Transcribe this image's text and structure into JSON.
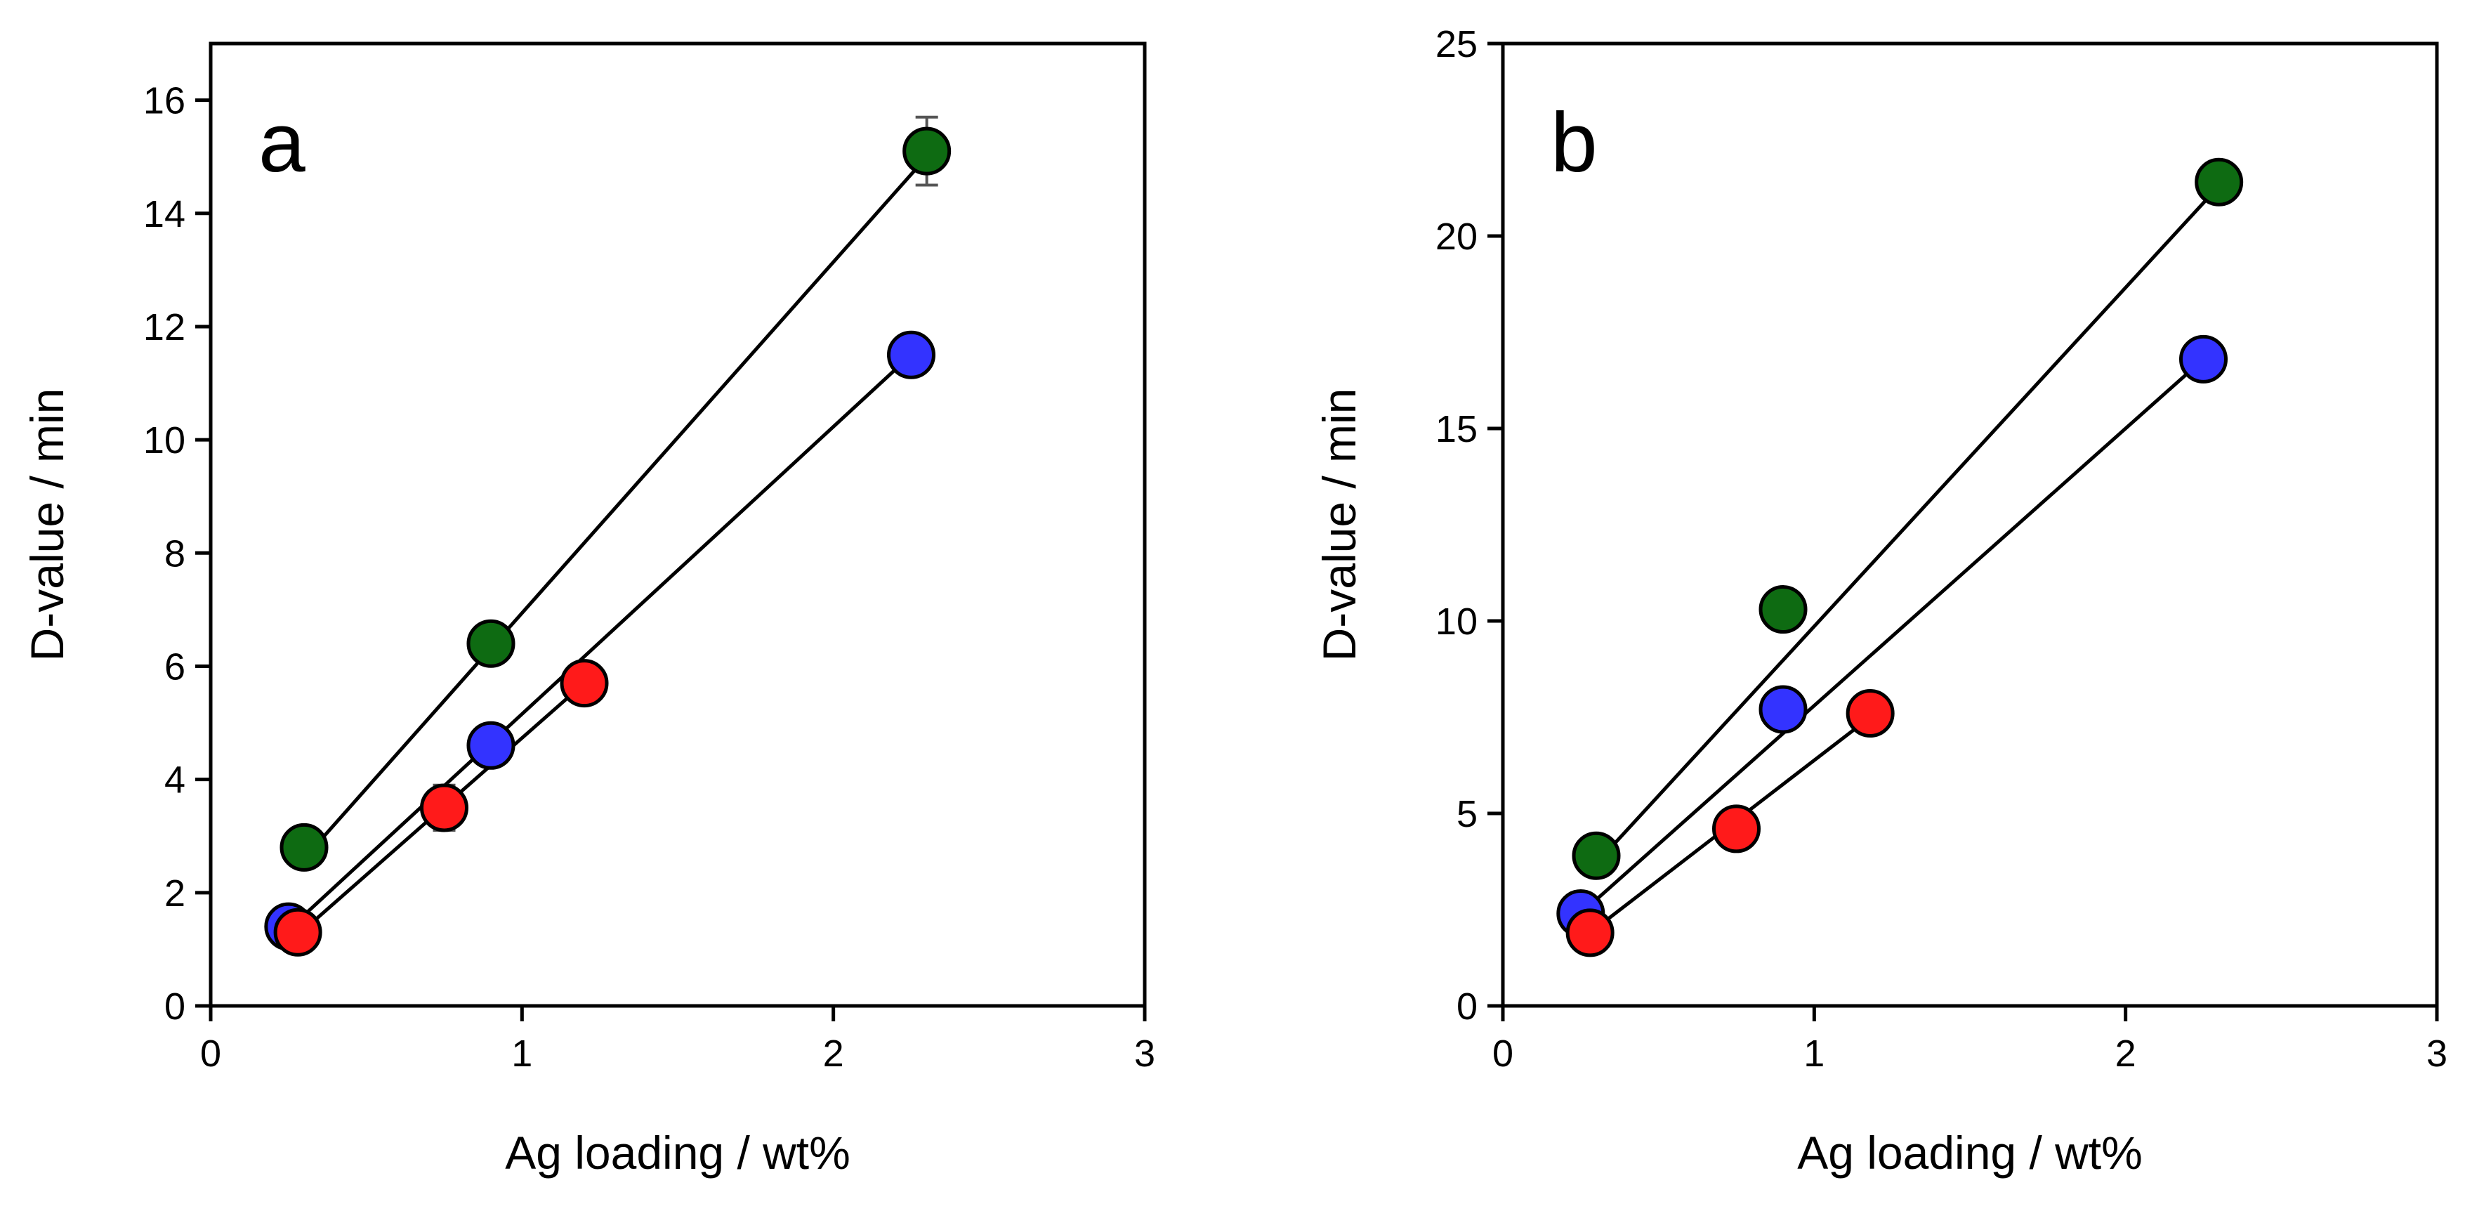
{
  "colors": {
    "green": "#0e6b12",
    "blue": "#3333ff",
    "red": "#ff1a1a",
    "errorbar": "#555555",
    "line": "#000000"
  },
  "chart_data": [
    {
      "type": "scatter",
      "panel_label": "a",
      "xlabel": "Ag loading / wt%",
      "ylabel": "D-value / min",
      "xlim": [
        0,
        3
      ],
      "ylim": [
        0,
        17
      ],
      "xticks": [
        0,
        1,
        2,
        3
      ],
      "xtick_labels": [
        "0",
        "1",
        "2",
        "3"
      ],
      "yticks": [
        0,
        2,
        4,
        6,
        8,
        10,
        12,
        14,
        16
      ],
      "ytick_labels": [
        "0",
        "2",
        "4",
        "6",
        "8",
        "10",
        "12",
        "14",
        "16"
      ],
      "grid": false,
      "series": [
        {
          "name": "green",
          "color": "#0e6b12",
          "x": [
            0.3,
            0.9,
            2.3
          ],
          "y": [
            2.8,
            6.4,
            15.1
          ],
          "yerr": [
            0.15,
            0.2,
            0.6
          ],
          "fit": [
            [
              0.3,
              2.6
            ],
            [
              2.3,
              15.0
            ]
          ]
        },
        {
          "name": "blue",
          "color": "#3333ff",
          "x": [
            0.25,
            0.9,
            2.25
          ],
          "y": [
            1.4,
            4.6,
            11.5
          ],
          "yerr": [
            0.1,
            0.2,
            0.2
          ],
          "fit": [
            [
              0.25,
              1.35
            ],
            [
              2.25,
              11.5
            ]
          ]
        },
        {
          "name": "red",
          "color": "#ff1a1a",
          "x": [
            0.28,
            0.75,
            1.2
          ],
          "y": [
            1.3,
            3.5,
            5.7
          ],
          "yerr": [
            0.1,
            0.4,
            0.2
          ],
          "fit": [
            [
              0.28,
              1.25
            ],
            [
              1.2,
              5.7
            ]
          ]
        }
      ]
    },
    {
      "type": "scatter",
      "panel_label": "b",
      "xlabel": "Ag loading / wt%",
      "ylabel": "D-value / min",
      "xlim": [
        0,
        3
      ],
      "ylim": [
        0,
        25
      ],
      "xticks": [
        0,
        1,
        2,
        3
      ],
      "xtick_labels": [
        "0",
        "1",
        "2",
        "3"
      ],
      "yticks": [
        0,
        5,
        10,
        15,
        20,
        25
      ],
      "ytick_labels": [
        "0",
        "5",
        "10",
        "15",
        "20",
        "25"
      ],
      "grid": false,
      "series": [
        {
          "name": "green",
          "color": "#0e6b12",
          "x": [
            0.3,
            0.9,
            2.3
          ],
          "y": [
            3.9,
            10.3,
            21.4
          ],
          "yerr": [
            0.2,
            0.3,
            0.5
          ],
          "fit": [
            [
              0.3,
              3.7
            ],
            [
              2.3,
              21.3
            ]
          ]
        },
        {
          "name": "blue",
          "color": "#3333ff",
          "x": [
            0.25,
            0.9,
            2.25
          ],
          "y": [
            2.4,
            7.7,
            16.8
          ],
          "yerr": [
            0.15,
            0.3,
            0.3
          ],
          "fit": [
            [
              0.25,
              2.4
            ],
            [
              2.25,
              16.8
            ]
          ]
        },
        {
          "name": "red",
          "color": "#ff1a1a",
          "x": [
            0.28,
            0.75,
            1.18
          ],
          "y": [
            1.9,
            4.6,
            7.6
          ],
          "yerr": [
            0.15,
            0.2,
            0.2
          ],
          "fit": [
            [
              0.28,
              1.9
            ],
            [
              1.18,
              7.5
            ]
          ]
        }
      ]
    }
  ]
}
